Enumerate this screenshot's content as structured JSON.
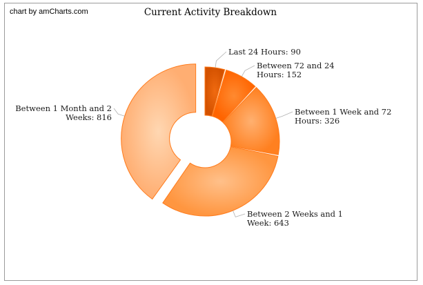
{
  "credit": "chart by amCharts.com",
  "chart_data": {
    "type": "pie",
    "title": "Current Activity Breakdown",
    "slices": [
      {
        "label_lines": [
          "Last 24 Hours: 90"
        ],
        "value": 90,
        "color": "#d95600"
      },
      {
        "label_lines": [
          "Between 72 and 24",
          "Hours: 152"
        ],
        "value": 152,
        "color": "#ff6a00"
      },
      {
        "label_lines": [
          "Between 1 Week and 72",
          "Hours: 326"
        ],
        "value": 326,
        "color": "#ff8a2e"
      },
      {
        "label_lines": [
          "Between 2 Weeks and 1",
          "Week: 643"
        ],
        "value": 643,
        "color": "#ff9a4a"
      },
      {
        "label_lines": [
          "Between 1 Month and 2",
          "Weeks: 816"
        ],
        "value": 816,
        "color": "#ffb880"
      }
    ],
    "pulled_out_slice": "Between 1 Month and 2 Weeks: 816",
    "donut": true
  }
}
